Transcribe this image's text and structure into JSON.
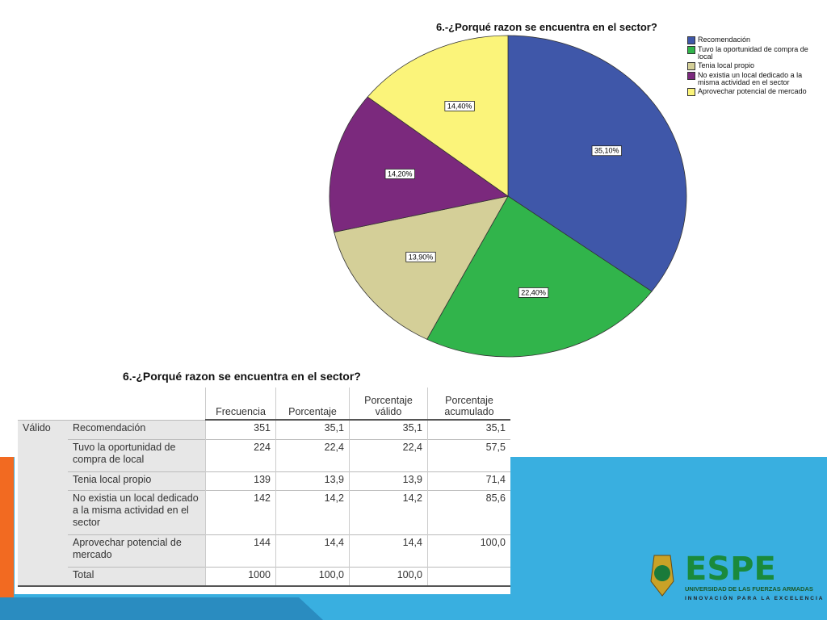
{
  "chart_data": {
    "type": "pie",
    "title": "6.-¿Porqué razon se encuentra en el sector?",
    "categories": [
      "Recomendación",
      "Tuvo la oportunidad de compra de local",
      "Tenia local propio",
      "No existia un local dedicado a la misma actividad en el sector",
      "Aprovechar potencial de mercado"
    ],
    "values": [
      35.1,
      22.4,
      13.9,
      14.2,
      14.4
    ],
    "value_labels": [
      "35,10%",
      "22,40%",
      "13,90%",
      "14,20%",
      "14,40%"
    ],
    "colors": [
      "#3f57a9",
      "#31b44b",
      "#d4cf98",
      "#7b297d",
      "#fbf47a"
    ],
    "legend": "upper right"
  },
  "table": {
    "title": "6.-¿Porqué razon se encuentra en el sector?",
    "columns": [
      "Frecuencia",
      "Porcentaje",
      "Porcentaje válido",
      "Porcentaje acumulado"
    ],
    "group": "Válido",
    "rows": [
      {
        "label": "Recomendación",
        "cells": [
          "351",
          "35,1",
          "35,1",
          "35,1"
        ]
      },
      {
        "label": "Tuvo la oportunidad de compra de local",
        "cells": [
          "224",
          "22,4",
          "22,4",
          "57,5"
        ]
      },
      {
        "label": "Tenia local propio",
        "cells": [
          "139",
          "13,9",
          "13,9",
          "71,4"
        ]
      },
      {
        "label": "No existia un local dedicado a la misma actividad en el sector",
        "cells": [
          "142",
          "14,2",
          "14,2",
          "85,6"
        ]
      },
      {
        "label": "Aprovechar potencial de mercado",
        "cells": [
          "144",
          "14,4",
          "14,4",
          "100,0"
        ]
      },
      {
        "label": "Total",
        "cells": [
          "1000",
          "100,0",
          "100,0"
        ]
      }
    ]
  },
  "logo": {
    "name": "ESPE",
    "line1": "UNIVERSIDAD DE LAS FUERZAS ARMADAS",
    "line2": "INNOVACIÓN PARA LA EXCELENCIA"
  }
}
